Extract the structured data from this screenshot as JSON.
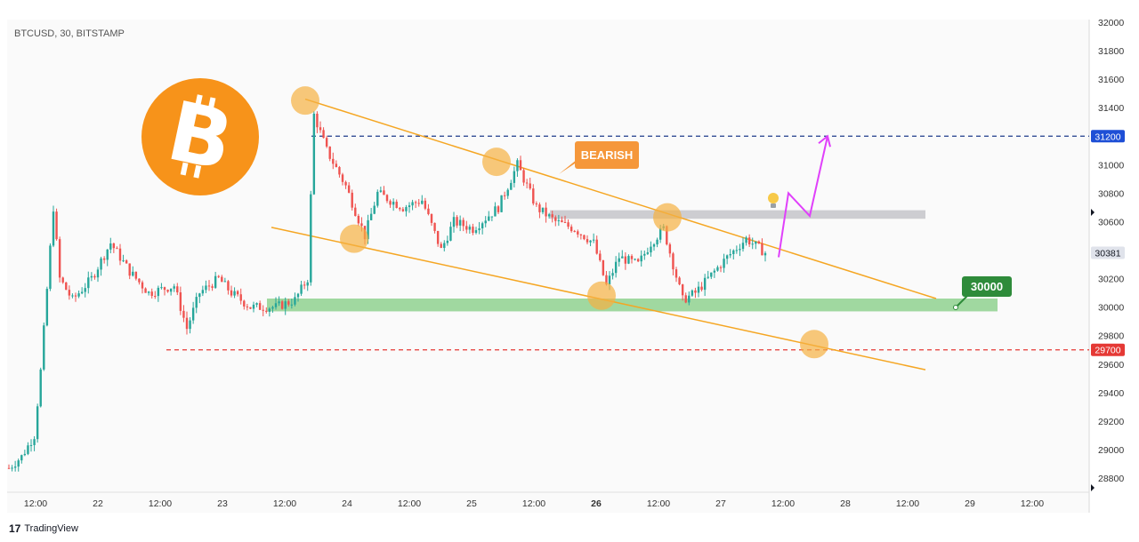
{
  "header": {
    "symbol_label": "BTCUSD, 30, BITSTAMP"
  },
  "footer": {
    "logo": "17",
    "brand": "TradingView"
  },
  "icons": {
    "bitcoin": "bitcoin-logo-icon",
    "idea": "lightbulb-icon",
    "brand": "tradingview-logo-icon"
  },
  "colors": {
    "bitcoin_orange": "#F7931A",
    "up_candle": "#26a69a",
    "down_candle": "#ef5350",
    "trendline": "#F5A623",
    "circle": "#F5B041",
    "support_zone": "#8fd18f",
    "resistance_zone": "#c8c8cc",
    "projection": "#e040fb",
    "line_31200": "#1e3a8a",
    "line_29700": "#e53935",
    "note_bearish": "#F5973A",
    "note_30000": "#2e8b3a"
  },
  "notes": {
    "bearish": "BEARISH",
    "level_30000": "30000"
  },
  "price_tags": {
    "p31200": {
      "text": "31200",
      "color": "#1e4fd6"
    },
    "p30381": {
      "text": "30381",
      "color": "#e0e3eb"
    },
    "p29700": {
      "text": "29700",
      "color": "#e53935"
    }
  },
  "chart_data": {
    "type": "candlestick",
    "symbol": "BTCUSD",
    "timeframe": "30",
    "exchange": "BITSTAMP",
    "x_tick_labels": [
      "12:00",
      "22",
      "12:00",
      "23",
      "12:00",
      "24",
      "12:00",
      "25",
      "12:00",
      "26",
      "12:00",
      "27",
      "12:00",
      "28",
      "12:00",
      "29",
      "12:00"
    ],
    "y_tick_labels": [
      28800,
      29000,
      29200,
      29400,
      29600,
      29800,
      30000,
      30200,
      30400,
      30600,
      30800,
      31000,
      31200,
      31400,
      31600,
      31800,
      32000
    ],
    "ylim": [
      28700,
      32050
    ],
    "last_price": 30381,
    "key_levels": [
      31200,
      30000,
      29700
    ],
    "resistance_zone": [
      30620,
      30680
    ],
    "support_zone": [
      29970,
      30060
    ],
    "descending_channel": {
      "upper": [
        {
          "x": "23 12:30",
          "y": 31450
        },
        {
          "x": "28 13:00",
          "y": 30050
        }
      ],
      "lower": [
        {
          "x": "23 00:00",
          "y": 30560
        },
        {
          "x": "28 14:00",
          "y": 29560
        }
      ]
    },
    "close_path_anchors": [
      {
        "t": 0,
        "y": 28870
      },
      {
        "t": 2,
        "y": 28950
      },
      {
        "t": 4,
        "y": 29100
      },
      {
        "t": 5,
        "y": 29550
      },
      {
        "t": 7,
        "y": 30700
      },
      {
        "t": 8,
        "y": 30200
      },
      {
        "t": 10,
        "y": 30050
      },
      {
        "t": 13,
        "y": 30200
      },
      {
        "t": 16,
        "y": 30450
      },
      {
        "t": 19,
        "y": 30250
      },
      {
        "t": 22,
        "y": 30100
      },
      {
        "t": 26,
        "y": 30150
      },
      {
        "t": 28,
        "y": 29850
      },
      {
        "t": 30,
        "y": 30100
      },
      {
        "t": 33,
        "y": 30200
      },
      {
        "t": 35,
        "y": 30100
      },
      {
        "t": 38,
        "y": 30000
      },
      {
        "t": 42,
        "y": 30000
      },
      {
        "t": 45,
        "y": 30050
      },
      {
        "t": 47,
        "y": 30200
      },
      {
        "t": 48,
        "y": 31350
      },
      {
        "t": 50,
        "y": 31100
      },
      {
        "t": 53,
        "y": 30850
      },
      {
        "t": 56,
        "y": 30500
      },
      {
        "t": 58,
        "y": 30800
      },
      {
        "t": 62,
        "y": 30700
      },
      {
        "t": 65,
        "y": 30750
      },
      {
        "t": 68,
        "y": 30400
      },
      {
        "t": 70,
        "y": 30600
      },
      {
        "t": 73,
        "y": 30550
      },
      {
        "t": 77,
        "y": 30700
      },
      {
        "t": 80,
        "y": 31000
      },
      {
        "t": 83,
        "y": 30700
      },
      {
        "t": 86,
        "y": 30600
      },
      {
        "t": 89,
        "y": 30550
      },
      {
        "t": 92,
        "y": 30450
      },
      {
        "t": 94,
        "y": 30150
      },
      {
        "t": 96,
        "y": 30350
      },
      {
        "t": 99,
        "y": 30300
      },
      {
        "t": 101,
        "y": 30450
      },
      {
        "t": 103,
        "y": 30550
      },
      {
        "t": 106,
        "y": 30050
      },
      {
        "t": 108,
        "y": 30100
      },
      {
        "t": 110,
        "y": 30200
      },
      {
        "t": 113,
        "y": 30350
      },
      {
        "t": 116,
        "y": 30480
      },
      {
        "t": 119,
        "y": 30381
      }
    ],
    "projection_path": [
      30350,
      30800,
      30640,
      31200
    ],
    "highlighted_points": [
      31450,
      30480,
      31020,
      30080,
      30630,
      29740
    ]
  }
}
